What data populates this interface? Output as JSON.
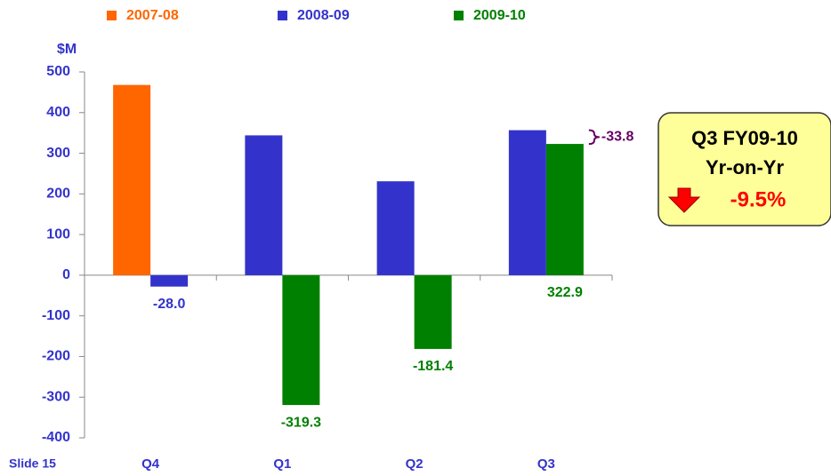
{
  "chart_data": {
    "type": "bar",
    "y_unit": "$M",
    "categories": [
      "Q4",
      "Q1",
      "Q2",
      "Q3"
    ],
    "series": [
      {
        "name": "2007-08",
        "color": "#FF6600",
        "values": [
          468,
          null,
          null,
          null
        ]
      },
      {
        "name": "2008-09",
        "color": "#3333CC",
        "values": [
          -28.0,
          344,
          231,
          356.7
        ],
        "value_labels": [
          "-28.0",
          null,
          null,
          null
        ]
      },
      {
        "name": "2009-10",
        "color": "#008000",
        "values": [
          null,
          -319.3,
          -181.4,
          322.9
        ],
        "value_labels": [
          null,
          "-319.3",
          "-181.4",
          "322.9"
        ]
      }
    ],
    "ylim": [
      -400,
      500
    ],
    "yticks": [
      -400,
      -300,
      -200,
      -100,
      0,
      100,
      200,
      300,
      400,
      500
    ],
    "axis_color": "#3333CC",
    "difference_annotation": {
      "value": -33.8,
      "color": "#660066"
    },
    "callout": {
      "title": "Q3 FY09-10",
      "subtitle": "Yr-on-Yr",
      "change": "-9.5%"
    },
    "footer": "Slide 15"
  }
}
